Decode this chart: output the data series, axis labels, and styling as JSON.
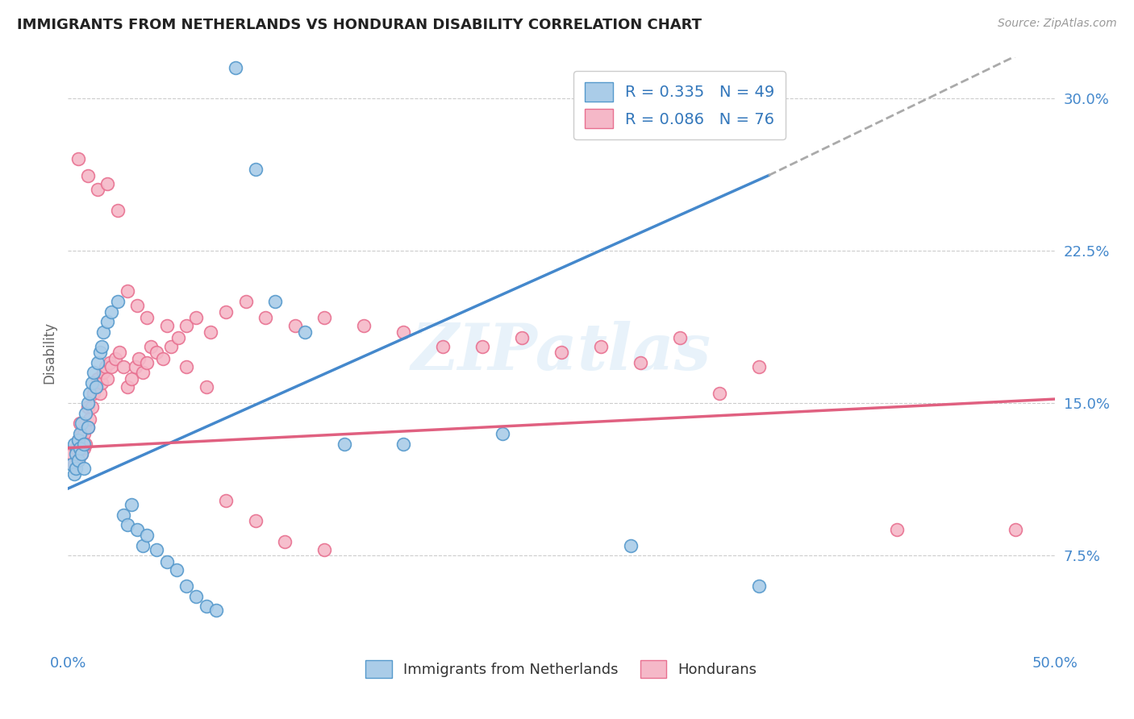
{
  "title": "IMMIGRANTS FROM NETHERLANDS VS HONDURAN DISABILITY CORRELATION CHART",
  "source": "Source: ZipAtlas.com",
  "ylabel": "Disability",
  "xlim": [
    0.0,
    0.5
  ],
  "ylim": [
    0.03,
    0.32
  ],
  "y_ticks": [
    0.075,
    0.15,
    0.225,
    0.3
  ],
  "y_tick_labels": [
    "7.5%",
    "15.0%",
    "22.5%",
    "30.0%"
  ],
  "legend_labels": [
    "Immigrants from Netherlands",
    "Hondurans"
  ],
  "R_blue": 0.335,
  "N_blue": 49,
  "R_pink": 0.086,
  "N_pink": 76,
  "blue_fill": "#aacce8",
  "pink_fill": "#f5b8c8",
  "blue_edge": "#5599cc",
  "pink_edge": "#e87090",
  "blue_line": "#4488cc",
  "pink_line": "#e06080",
  "dash_color": "#aaaaaa",
  "blue_scatter_x": [
    0.002,
    0.003,
    0.003,
    0.004,
    0.004,
    0.005,
    0.005,
    0.006,
    0.006,
    0.007,
    0.007,
    0.008,
    0.008,
    0.009,
    0.01,
    0.01,
    0.011,
    0.012,
    0.013,
    0.014,
    0.015,
    0.016,
    0.017,
    0.018,
    0.02,
    0.022,
    0.025,
    0.028,
    0.03,
    0.032,
    0.035,
    0.038,
    0.04,
    0.045,
    0.05,
    0.055,
    0.06,
    0.065,
    0.07,
    0.075,
    0.085,
    0.095,
    0.105,
    0.12,
    0.14,
    0.17,
    0.22,
    0.285,
    0.35
  ],
  "blue_scatter_y": [
    0.12,
    0.115,
    0.13,
    0.125,
    0.118,
    0.132,
    0.122,
    0.128,
    0.135,
    0.125,
    0.14,
    0.13,
    0.118,
    0.145,
    0.138,
    0.15,
    0.155,
    0.16,
    0.165,
    0.158,
    0.17,
    0.175,
    0.178,
    0.185,
    0.19,
    0.195,
    0.2,
    0.095,
    0.09,
    0.1,
    0.088,
    0.08,
    0.085,
    0.078,
    0.072,
    0.068,
    0.06,
    0.055,
    0.05,
    0.048,
    0.315,
    0.265,
    0.2,
    0.185,
    0.13,
    0.13,
    0.135,
    0.08,
    0.06
  ],
  "pink_scatter_x": [
    0.002,
    0.003,
    0.004,
    0.005,
    0.005,
    0.006,
    0.006,
    0.007,
    0.007,
    0.008,
    0.008,
    0.009,
    0.01,
    0.01,
    0.011,
    0.012,
    0.013,
    0.014,
    0.015,
    0.016,
    0.017,
    0.018,
    0.019,
    0.02,
    0.021,
    0.022,
    0.024,
    0.026,
    0.028,
    0.03,
    0.032,
    0.034,
    0.036,
    0.038,
    0.04,
    0.042,
    0.045,
    0.048,
    0.052,
    0.056,
    0.06,
    0.065,
    0.072,
    0.08,
    0.09,
    0.1,
    0.115,
    0.13,
    0.15,
    0.17,
    0.19,
    0.21,
    0.23,
    0.25,
    0.27,
    0.29,
    0.31,
    0.33,
    0.005,
    0.01,
    0.015,
    0.02,
    0.025,
    0.03,
    0.035,
    0.04,
    0.05,
    0.06,
    0.07,
    0.08,
    0.095,
    0.11,
    0.13,
    0.35,
    0.42,
    0.48
  ],
  "pink_scatter_y": [
    0.125,
    0.12,
    0.128,
    0.132,
    0.122,
    0.13,
    0.14,
    0.135,
    0.125,
    0.128,
    0.135,
    0.13,
    0.138,
    0.148,
    0.142,
    0.148,
    0.155,
    0.158,
    0.162,
    0.155,
    0.16,
    0.165,
    0.168,
    0.162,
    0.17,
    0.168,
    0.172,
    0.175,
    0.168,
    0.158,
    0.162,
    0.168,
    0.172,
    0.165,
    0.17,
    0.178,
    0.175,
    0.172,
    0.178,
    0.182,
    0.188,
    0.192,
    0.185,
    0.195,
    0.2,
    0.192,
    0.188,
    0.192,
    0.188,
    0.185,
    0.178,
    0.178,
    0.182,
    0.175,
    0.178,
    0.17,
    0.182,
    0.155,
    0.27,
    0.262,
    0.255,
    0.258,
    0.245,
    0.205,
    0.198,
    0.192,
    0.188,
    0.168,
    0.158,
    0.102,
    0.092,
    0.082,
    0.078,
    0.168,
    0.088,
    0.088
  ],
  "blue_line_start_x": 0.0,
  "blue_line_start_y": 0.108,
  "blue_line_solid_end_x": 0.355,
  "blue_line_solid_end_y": 0.262,
  "blue_line_dash_end_x": 0.5,
  "blue_line_dash_end_y": 0.33,
  "pink_line_start_x": 0.0,
  "pink_line_start_y": 0.128,
  "pink_line_end_x": 0.5,
  "pink_line_end_y": 0.152
}
